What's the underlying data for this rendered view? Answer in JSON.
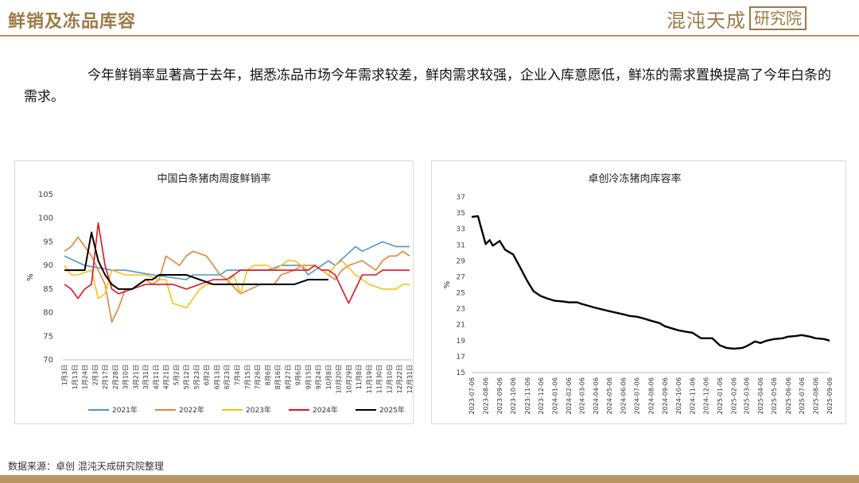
{
  "header": {
    "title": "鲜销及冻品库容",
    "logo_text": "混沌天成",
    "logo_box": "研究院"
  },
  "paragraph": "今年鲜销率显著高于去年，据悉冻品市场今年需求较差，鲜肉需求较强，企业入库意愿低，鲜冻的需求置换提高了今年白条的需求。",
  "source": "数据来源：卓创  混沌天成研究院整理",
  "colors": {
    "accent": "#b89563",
    "s2021": "#4f95c8",
    "s2022": "#e0873b",
    "s2023": "#f2c417",
    "s2024": "#e0141e",
    "s2025": "#000000"
  },
  "chart_data": [
    {
      "type": "line",
      "title": "中国白条猪肉周度鲜销率",
      "ylabel": "%",
      "ylim": [
        70,
        105
      ],
      "yticks": [
        70,
        75,
        80,
        85,
        90,
        95,
        100,
        105
      ],
      "x_range": [
        1,
        52
      ],
      "xtick_labels": [
        "1月3日",
        "1月13日",
        "1月24日",
        "2月3日",
        "2月17日",
        "2月28日",
        "3月10日",
        "3月21日",
        "3月31日",
        "4月11日",
        "4月21日",
        "5月2日",
        "5月12日",
        "5月23日",
        "6月2日",
        "6月13日",
        "6月23日",
        "7月4日",
        "7月15日",
        "7月26日",
        "8月6日",
        "8月16日",
        "8月27日",
        "9月6日",
        "9月15日",
        "9月24日",
        "10月8日",
        "10月20日",
        "10月29日",
        "11月8日",
        "11月19日",
        "11月30日",
        "12月10日",
        "12月22日",
        "12月31日"
      ],
      "legend_position": "bottom",
      "series": [
        {
          "name": "2021年",
          "color_key": "s2021",
          "x": [
            1,
            4,
            8,
            10,
            14,
            19,
            20,
            24,
            25,
            28,
            31,
            33,
            36,
            37,
            40,
            41,
            44,
            45,
            48,
            50,
            52
          ],
          "values": [
            92,
            90,
            89,
            89,
            88,
            87,
            88,
            88,
            89,
            89,
            89,
            90,
            90,
            88,
            91,
            90,
            94,
            93,
            95,
            94,
            94
          ]
        },
        {
          "name": "2022年",
          "color_key": "s2022",
          "x": [
            1,
            2,
            3,
            4,
            5,
            7,
            8,
            9,
            10,
            11,
            13,
            14,
            15,
            16,
            18,
            19,
            20,
            22,
            23,
            24,
            25,
            27,
            30,
            32,
            33,
            35,
            36,
            38,
            39,
            41,
            42,
            43,
            45,
            47,
            48,
            49,
            50,
            51,
            52
          ],
          "values": [
            93,
            94,
            96,
            94,
            92,
            86,
            78,
            81,
            85,
            85,
            87,
            86,
            87,
            92,
            90,
            92,
            93,
            92,
            90,
            88,
            87,
            84,
            86,
            86,
            88,
            89,
            90,
            90,
            89,
            87,
            89,
            90,
            91,
            89,
            91,
            92,
            92,
            93,
            92
          ]
        },
        {
          "name": "2023年",
          "color_key": "s2023",
          "x": [
            1,
            2,
            3,
            5,
            6,
            7,
            8,
            10,
            11,
            13,
            15,
            16,
            17,
            19,
            21,
            22,
            23,
            24,
            25,
            26,
            27,
            28,
            29,
            31,
            32,
            34,
            35,
            36,
            37,
            38,
            40,
            41,
            42,
            44,
            46,
            48,
            50,
            51,
            52
          ],
          "values": [
            90,
            88,
            88,
            89,
            83,
            84,
            89,
            88,
            88,
            88,
            87,
            87,
            82,
            81,
            85,
            86,
            86,
            86,
            86,
            88,
            84,
            89,
            90,
            90,
            89,
            91,
            91,
            90,
            89,
            90,
            88,
            90,
            91,
            88,
            86,
            85,
            85,
            86,
            86
          ]
        },
        {
          "name": "2024年",
          "color_key": "s2024",
          "x": [
            1,
            2,
            3,
            4,
            5,
            6,
            7,
            8,
            9,
            11,
            13,
            15,
            17,
            19,
            21,
            23,
            25,
            27,
            28,
            29,
            31,
            33,
            35,
            37,
            38,
            39,
            40,
            41,
            43,
            45,
            47,
            48,
            49,
            50,
            52
          ],
          "values": [
            86,
            85,
            83,
            85,
            86,
            99,
            90,
            85,
            84,
            85,
            86,
            86,
            86,
            85,
            86,
            87,
            87,
            89,
            89,
            89,
            89,
            89,
            89,
            89,
            90,
            89,
            89,
            88,
            82,
            88,
            88,
            89,
            89,
            89,
            89
          ]
        },
        {
          "name": "2025年",
          "color_key": "s2025",
          "x": [
            1,
            2,
            3,
            4,
            5,
            6,
            7,
            8,
            9,
            10,
            11,
            12,
            13,
            14,
            15,
            17,
            19,
            21,
            23,
            25,
            27,
            29,
            31,
            33,
            35,
            37,
            39,
            40
          ],
          "values": [
            89,
            89,
            89,
            89,
            97,
            91,
            88,
            86,
            85,
            85,
            85,
            86,
            87,
            87,
            88,
            88,
            88,
            87,
            86,
            86,
            86,
            86,
            86,
            86,
            86,
            87,
            87,
            87
          ]
        }
      ]
    },
    {
      "type": "line",
      "title": "卓创冷冻猪肉库容率",
      "ylabel": "%",
      "ylim": [
        15,
        37
      ],
      "yticks": [
        15,
        17,
        19,
        21,
        23,
        25,
        27,
        29,
        31,
        33,
        35,
        37
      ],
      "x_range": [
        "2023-07-06",
        "2025-09-06"
      ],
      "xtick_labels": [
        "2023-07-06",
        "2023-08-06",
        "2023-09-06",
        "2023-10-06",
        "2023-11-06",
        "2023-12-06",
        "2024-01-06",
        "2024-02-06",
        "2024-03-06",
        "2024-04-06",
        "2024-05-06",
        "2024-06-06",
        "2024-07-06",
        "2024-08-06",
        "2024-09-06",
        "2024-10-06",
        "2024-11-06",
        "2024-12-06",
        "2025-01-06",
        "2025-02-06",
        "2025-03-06",
        "2025-04-06",
        "2025-05-06",
        "2025-06-06",
        "2025-07-06",
        "2025-08-06",
        "2025-09-06"
      ],
      "x": [
        "2023-07-06",
        "2023-07-20",
        "2023-08-06",
        "2023-08-15",
        "2023-08-22",
        "2023-09-06",
        "2023-09-18",
        "2023-10-06",
        "2023-10-25",
        "2023-11-06",
        "2023-11-20",
        "2023-12-06",
        "2023-12-20",
        "2024-01-06",
        "2024-01-25",
        "2024-02-06",
        "2024-02-25",
        "2024-03-06",
        "2024-03-25",
        "2024-04-06",
        "2024-05-06",
        "2024-06-06",
        "2024-06-20",
        "2024-07-06",
        "2024-07-20",
        "2024-08-06",
        "2024-08-25",
        "2024-09-06",
        "2024-10-06",
        "2024-10-25",
        "2024-11-06",
        "2024-11-25",
        "2024-12-06",
        "2024-12-20",
        "2025-01-06",
        "2025-01-20",
        "2025-02-06",
        "2025-02-25",
        "2025-03-06",
        "2025-03-25",
        "2025-04-06",
        "2025-04-20",
        "2025-05-06",
        "2025-05-25",
        "2025-06-06",
        "2025-06-25",
        "2025-07-06",
        "2025-07-25",
        "2025-08-06",
        "2025-08-25",
        "2025-09-06"
      ],
      "values": [
        34.5,
        34.6,
        31.1,
        31.6,
        30.9,
        31.5,
        30.4,
        29.8,
        27.8,
        26.5,
        25.2,
        24.6,
        24.3,
        24.0,
        23.9,
        23.8,
        23.8,
        23.6,
        23.3,
        23.1,
        22.7,
        22.3,
        22.1,
        22.0,
        21.8,
        21.5,
        21.2,
        20.8,
        20.3,
        20.1,
        20.0,
        19.3,
        19.3,
        19.3,
        18.4,
        18.1,
        18.0,
        18.1,
        18.3,
        18.9,
        18.7,
        19.0,
        19.2,
        19.3,
        19.5,
        19.6,
        19.7,
        19.5,
        19.3,
        19.2,
        19.0
      ]
    }
  ]
}
